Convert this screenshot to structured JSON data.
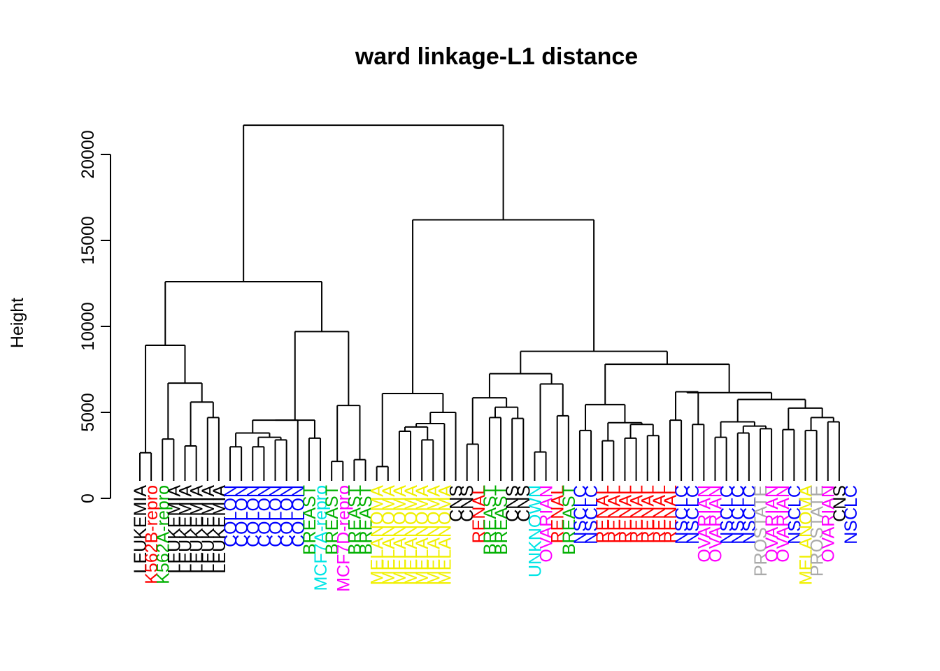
{
  "chart_data": {
    "type": "dendrogram",
    "title": "ward linkage-L1 distance",
    "ylabel": "Height",
    "xlabel": "",
    "ylim": [
      0,
      22500
    ],
    "yticks": [
      0,
      5000,
      10000,
      15000,
      20000
    ],
    "yticklabels": [
      "0",
      "5000",
      "10000",
      "15000",
      "20000"
    ],
    "grid": false,
    "colors": {
      "LEUKEMIA": "#000000",
      "K562B-repro": "#ff0000",
      "K562A-repro": "#00b000",
      "COLON": "#0000ff",
      "BREAST": "#00b000",
      "MCF7A-repro": "#00e5e5",
      "MCF7D-repro": "#ff00ff",
      "MELANOMA": "#f0f000",
      "CNS": "#000000",
      "RENAL": "#ff0000",
      "UNKNOWN": "#00e5e5",
      "OVARIAN": "#ff00ff",
      "NSCLC": "#0000ff",
      "PROSTATE": "#aaaaaa"
    },
    "leaves": [
      {
        "label": "LEUKEMIA",
        "height": 0
      },
      {
        "label": "K562B-repro",
        "height": 0
      },
      {
        "label": "K562A-repro",
        "height": 0
      },
      {
        "label": "LEUKEMIA",
        "height": 0
      },
      {
        "label": "LEUKEMIA",
        "height": 0
      },
      {
        "label": "LEUKEMIA",
        "height": 0
      },
      {
        "label": "LEUKEMIA",
        "height": 0
      },
      {
        "label": "LEUKEMIA",
        "height": 0
      },
      {
        "label": "COLON",
        "height": 0
      },
      {
        "label": "COLON",
        "height": 0
      },
      {
        "label": "COLON",
        "height": 0
      },
      {
        "label": "COLON",
        "height": 0
      },
      {
        "label": "COLON",
        "height": 0
      },
      {
        "label": "COLON",
        "height": 0
      },
      {
        "label": "COLON",
        "height": 0
      },
      {
        "label": "BREAST",
        "height": 0
      },
      {
        "label": "MCF7A-repro",
        "height": 0
      },
      {
        "label": "BREAST",
        "height": 0
      },
      {
        "label": "MCF7D-repro",
        "height": 0
      },
      {
        "label": "BREAST",
        "height": 0
      },
      {
        "label": "BREAST",
        "height": 0
      },
      {
        "label": "MELANOMA",
        "height": 0
      },
      {
        "label": "MELANOMA",
        "height": 0
      },
      {
        "label": "MELANOMA",
        "height": 0
      },
      {
        "label": "MELANOMA",
        "height": 0
      },
      {
        "label": "MELANOMA",
        "height": 0
      },
      {
        "label": "MELANOMA",
        "height": 0
      },
      {
        "label": "MELANOMA",
        "height": 0
      },
      {
        "label": "CNS",
        "height": 0
      },
      {
        "label": "CNS",
        "height": 0
      },
      {
        "label": "RENAL",
        "height": 0
      },
      {
        "label": "BREAST",
        "height": 0
      },
      {
        "label": "BREAST",
        "height": 0
      },
      {
        "label": "CNS",
        "height": 0
      },
      {
        "label": "CNS",
        "height": 0
      },
      {
        "label": "UNKNOWN",
        "height": 0
      },
      {
        "label": "OVARIAN",
        "height": 0
      },
      {
        "label": "RENAL",
        "height": 0
      },
      {
        "label": "BREAST",
        "height": 0
      },
      {
        "label": "NSCLC",
        "height": 0
      },
      {
        "label": "NSCLC",
        "height": 0
      },
      {
        "label": "RENAL",
        "height": 0
      },
      {
        "label": "RENAL",
        "height": 0
      },
      {
        "label": "RENAL",
        "height": 0
      },
      {
        "label": "RENAL",
        "height": 0
      },
      {
        "label": "RENAL",
        "height": 0
      },
      {
        "label": "RENAL",
        "height": 0
      },
      {
        "label": "RENAL",
        "height": 0
      },
      {
        "label": "NSCLC",
        "height": 0
      },
      {
        "label": "NSCLC",
        "height": 0
      },
      {
        "label": "OVARIAN",
        "height": 0
      },
      {
        "label": "OVARIAN",
        "height": 0
      },
      {
        "label": "NSCLC",
        "height": 0
      },
      {
        "label": "NSCLC",
        "height": 0
      },
      {
        "label": "NSCLC",
        "height": 0
      },
      {
        "label": "PROSTATE",
        "height": 0
      },
      {
        "label": "OVARIAN",
        "height": 0
      },
      {
        "label": "OVARIAN",
        "height": 0
      },
      {
        "label": "NSCLC",
        "height": 0
      },
      {
        "label": "MELANOMA",
        "height": 0
      },
      {
        "label": "PROSTATE",
        "height": 0
      },
      {
        "label": "OVARIAN",
        "height": 0
      },
      {
        "label": "CNS",
        "height": 0
      },
      {
        "label": "NSCLC",
        "height": 0
      }
    ],
    "merges": [
      {
        "a": 0,
        "b": 1,
        "h": 2650
      },
      {
        "a": 2,
        "b": 3,
        "h": 3450
      },
      {
        "a": 4,
        "b": 5,
        "h": 3050
      },
      {
        "a": 6,
        "b": 7,
        "h": 4700
      },
      {
        "a": "m2",
        "b": "m3",
        "h": 5600
      },
      {
        "a": "m1",
        "b": "m4",
        "h": 6700
      },
      {
        "a": "m0",
        "b": "m5",
        "h": 8900
      },
      {
        "a": 8,
        "b": 9,
        "h": 3000
      },
      {
        "a": 10,
        "b": 11,
        "h": 3000
      },
      {
        "a": 12,
        "b": 13,
        "h": 3400
      },
      {
        "a": "m8",
        "b": "m9",
        "h": 3550
      },
      {
        "a": "m7",
        "b": "m10",
        "h": 3800
      },
      {
        "a": "m11",
        "b": 14,
        "h": 4550
      },
      {
        "a": 15,
        "b": 16,
        "h": 3500
      },
      {
        "a": "m12",
        "b": "m13",
        "h": 4550
      },
      {
        "a": 17,
        "b": 18,
        "h": 2150
      },
      {
        "a": 19,
        "b": 20,
        "h": 2250
      },
      {
        "a": "m15",
        "b": "m16",
        "h": 5400
      },
      {
        "a": "m14",
        "b": "m17",
        "h": 9700
      },
      {
        "a": "m6",
        "b": "m18",
        "h": 12600
      },
      {
        "a": 21,
        "b": 22,
        "h": 1850
      },
      {
        "a": 23,
        "b": 24,
        "h": 3900
      },
      {
        "a": 25,
        "b": 26,
        "h": 3400
      },
      {
        "a": "m21",
        "b": "m22",
        "h": 4150
      },
      {
        "a": "m23",
        "b": 27,
        "h": 4350
      },
      {
        "a": "m24",
        "b": 28,
        "h": 5000
      },
      {
        "a": "m20",
        "b": "m25",
        "h": 6100
      },
      {
        "a": 29,
        "b": 30,
        "h": 3150
      },
      {
        "a": 31,
        "b": 32,
        "h": 4700
      },
      {
        "a": 33,
        "b": 34,
        "h": 4650
      },
      {
        "a": "m28",
        "b": "m29",
        "h": 5300
      },
      {
        "a": "m27",
        "b": "m30",
        "h": 5850
      },
      {
        "a": 35,
        "b": 36,
        "h": 2700
      },
      {
        "a": 37,
        "b": 38,
        "h": 4800
      },
      {
        "a": "m32",
        "b": "m33",
        "h": 6650
      },
      {
        "a": "m31",
        "b": "m34",
        "h": 7250
      },
      {
        "a": 39,
        "b": 40,
        "h": 3950
      },
      {
        "a": 41,
        "b": 42,
        "h": 3350
      },
      {
        "a": 43,
        "b": 44,
        "h": 3500
      },
      {
        "a": 45,
        "b": 46,
        "h": 3650
      },
      {
        "a": "m38",
        "b": "m39",
        "h": 4300
      },
      {
        "a": "m37",
        "b": "m40",
        "h": 4400
      },
      {
        "a": "m36",
        "b": "m41",
        "h": 5450
      },
      {
        "a": 47,
        "b": 48,
        "h": 4550
      },
      {
        "a": 49,
        "b": 50,
        "h": 4300
      },
      {
        "a": "m43",
        "b": "m44",
        "h": 6200
      },
      {
        "a": 51,
        "b": 52,
        "h": 3550
      },
      {
        "a": 53,
        "b": 54,
        "h": 3800
      },
      {
        "a": 55,
        "b": 56,
        "h": 4050
      },
      {
        "a": "m47",
        "b": "m48",
        "h": 4200
      },
      {
        "a": "m46",
        "b": "m49",
        "h": 4450
      },
      {
        "a": 57,
        "b": 58,
        "h": 4000
      },
      {
        "a": 59,
        "b": 60,
        "h": 3950
      },
      {
        "a": 61,
        "b": 62,
        "h": 4450
      },
      {
        "a": "m52",
        "b": "m53",
        "h": 4700
      },
      {
        "a": "m51",
        "b": "m54",
        "h": 5250
      },
      {
        "a": "m50",
        "b": "m55",
        "h": 5750
      },
      {
        "a": "m45",
        "b": "m56",
        "h": 6150
      },
      {
        "a": "m42",
        "b": "m57",
        "h": 7800
      },
      {
        "a": "m35",
        "b": "m58",
        "h": 8550
      },
      {
        "a": "m26",
        "b": "m59",
        "h": 16200
      },
      {
        "a": "m19",
        "b": "m60",
        "h": 21700
      }
    ]
  }
}
